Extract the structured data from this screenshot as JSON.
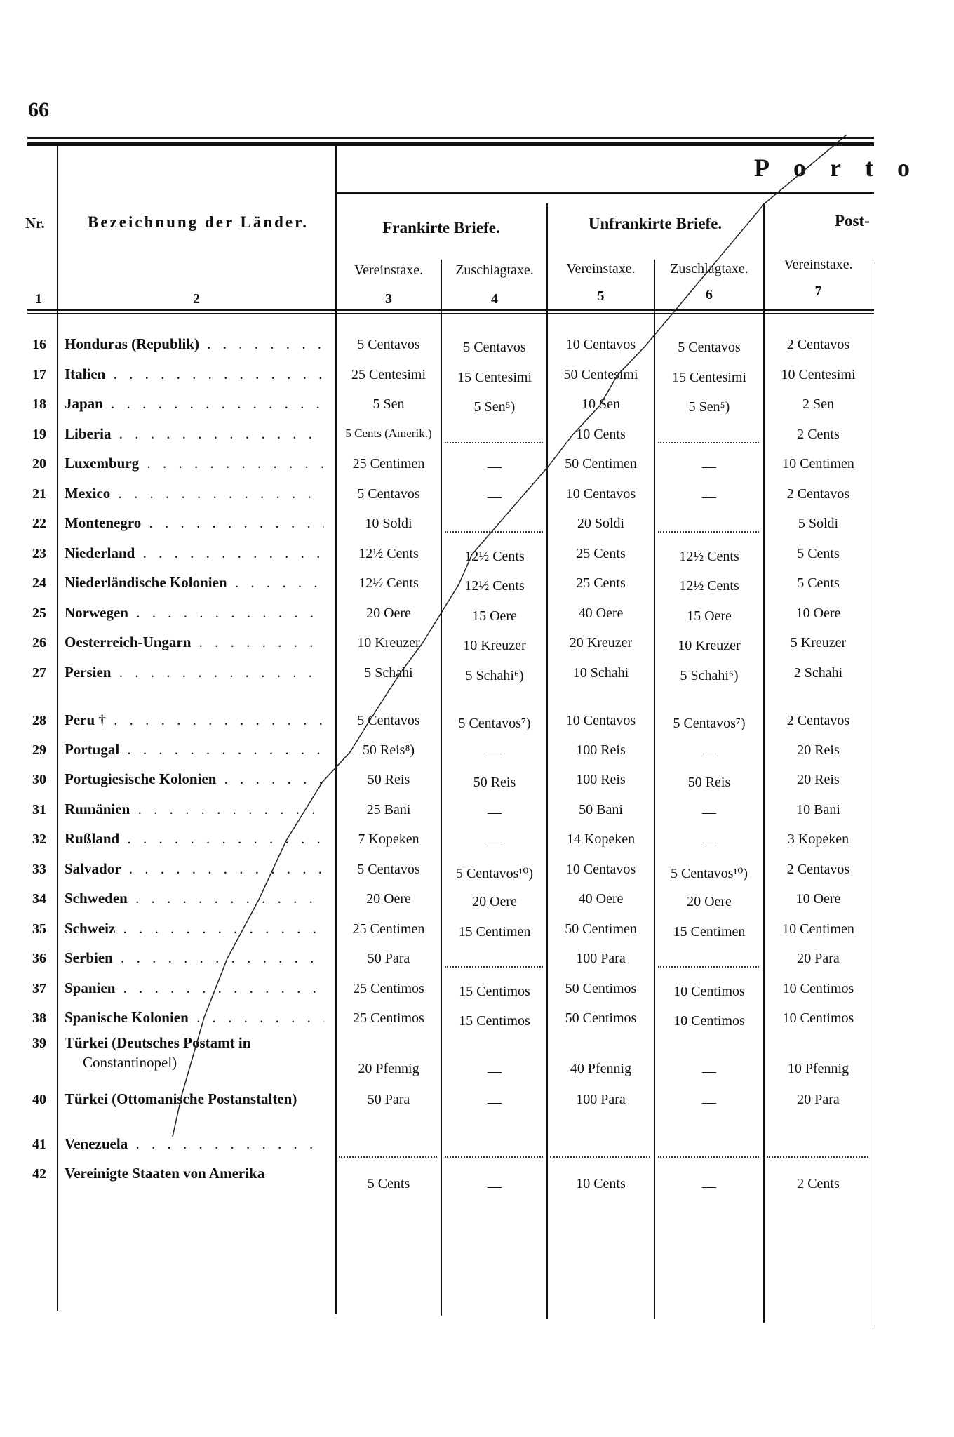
{
  "page_number": "66",
  "header": {
    "nr": "Nr.",
    "name": "Bezeichnung der Länder.",
    "group_title": "Porto",
    "frankirte": "Frankirte Briefe.",
    "unfrankirte": "Unfrankirte Briefe.",
    "post_cut": "Post-",
    "col3": "Vereinstaxe.",
    "col4": "Zuschlagtaxe.",
    "col5": "Vereinstaxe.",
    "col6": "Zuschlagtaxe.",
    "col7": "Vereinstaxe.",
    "colnums": [
      "1",
      "2",
      "3",
      "4",
      "5",
      "6",
      "7"
    ]
  },
  "rows": [
    {
      "nr": "16",
      "name": "Honduras (Republik)",
      "c3": "5 Centavos",
      "c4": "5 Centavos",
      "c5": "10 Centavos",
      "c6": "5 Centavos",
      "c7": "2 Centavos"
    },
    {
      "nr": "17",
      "name": "Italien",
      "c3": "25 Centesimi",
      "c4": "15 Centesimi",
      "c5": "50 Centesimi",
      "c6": "15 Centesimi",
      "c7": "10 Centesimi"
    },
    {
      "nr": "18",
      "name": "Japan",
      "c3": "5 Sen",
      "c4": "5 Sen⁵)",
      "c5": "10 Sen",
      "c6": "5 Sen⁵)",
      "c7": "2 Sen"
    },
    {
      "nr": "19",
      "name": "Liberia",
      "c3": "5 Cents (Amerik.)",
      "c4": "",
      "c5": "10 Cents",
      "c6": "",
      "c7": "2 Cents"
    },
    {
      "nr": "20",
      "name": "Luxemburg",
      "c3": "25 Centimen",
      "c4": "—",
      "c5": "50 Centimen",
      "c6": "—",
      "c7": "10 Centimen"
    },
    {
      "nr": "21",
      "name": "Mexico",
      "c3": "5 Centavos",
      "c4": "—",
      "c5": "10 Centavos",
      "c6": "—",
      "c7": "2 Centavos"
    },
    {
      "nr": "22",
      "name": "Montenegro",
      "c3": "10 Soldi",
      "c4": "",
      "c5": "20 Soldi",
      "c6": "",
      "c7": "5 Soldi"
    },
    {
      "nr": "23",
      "name": "Niederland",
      "c3": "12½ Cents",
      "c4": "12½ Cents",
      "c5": "25 Cents",
      "c6": "12½ Cents",
      "c7": "5 Cents"
    },
    {
      "nr": "24",
      "name": "Niederländische Kolonien",
      "c3": "12½ Cents",
      "c4": "12½ Cents",
      "c5": "25 Cents",
      "c6": "12½ Cents",
      "c7": "5 Cents"
    },
    {
      "nr": "25",
      "name": "Norwegen",
      "c3": "20 Oere",
      "c4": "15 Oere",
      "c5": "40 Oere",
      "c6": "15 Oere",
      "c7": "10 Oere"
    },
    {
      "nr": "26",
      "name": "Oesterreich-Ungarn",
      "c3": "10 Kreuzer",
      "c4": "10 Kreuzer",
      "c5": "20 Kreuzer",
      "c6": "10 Kreuzer",
      "c7": "5 Kreuzer"
    },
    {
      "nr": "27",
      "name": "Persien",
      "c3": "5 Schahi",
      "c4": "5 Schahi⁶)",
      "c5": "10 Schahi",
      "c6": "5 Schahi⁶)",
      "c7": "2 Schahi"
    },
    {
      "nr": "28",
      "name": "Peru †",
      "c3": "5 Centavos",
      "c4": "5 Centavos⁷)",
      "c5": "10 Centavos",
      "c6": "5 Centavos⁷)",
      "c7": "2 Centavos"
    },
    {
      "nr": "29",
      "name": "Portugal",
      "c3": "50 Reis⁸)",
      "c4": "—",
      "c5": "100 Reis",
      "c6": "—",
      "c7": "20 Reis"
    },
    {
      "nr": "30",
      "name": "Portugiesische Kolonien",
      "c3": "50 Reis",
      "c4": "50 Reis",
      "c5": "100 Reis",
      "c6": "50 Reis",
      "c7": "20 Reis"
    },
    {
      "nr": "31",
      "name": "Rumänien",
      "c3": "25 Bani",
      "c4": "—",
      "c5": "50 Bani",
      "c6": "—",
      "c7": "10 Bani"
    },
    {
      "nr": "32",
      "name": "Rußland",
      "c3": "7 Kopeken",
      "c4": "—",
      "c5": "14 Kopeken",
      "c6": "—",
      "c7": "3 Kopeken"
    },
    {
      "nr": "33",
      "name": "Salvador",
      "c3": "5 Centavos",
      "c4": "5 Centavos¹⁰)",
      "c5": "10 Centavos",
      "c6": "5 Centavos¹⁰)",
      "c7": "2 Centavos"
    },
    {
      "nr": "34",
      "name": "Schweden",
      "c3": "20 Oere",
      "c4": "20 Oere",
      "c5": "40 Oere",
      "c6": "20 Oere",
      "c7": "10 Oere"
    },
    {
      "nr": "35",
      "name": "Schweiz",
      "c3": "25 Centimen",
      "c4": "15 Centimen",
      "c5": "50 Centimen",
      "c6": "15 Centimen",
      "c7": "10 Centimen"
    },
    {
      "nr": "36",
      "name": "Serbien",
      "c3": "50 Para",
      "c4": "",
      "c5": "100 Para",
      "c6": "",
      "c7": "20 Para"
    },
    {
      "nr": "37",
      "name": "Spanien",
      "c3": "25 Centimos",
      "c4": "15 Centimos",
      "c5": "50 Centimos",
      "c6": "10 Centimos",
      "c7": "10 Centimos"
    },
    {
      "nr": "38",
      "name": "Spanische Kolonien",
      "c3": "25 Centimos",
      "c4": "15 Centimos",
      "c5": "50 Centimos",
      "c6": "10 Centimos",
      "c7": "10 Centimos"
    },
    {
      "nr": "39",
      "name": "Türkei (Deutsches Postamt in",
      "name2": "Constantinopel)",
      "c3": "20 Pfennig",
      "c4": "—",
      "c5": "40 Pfennig",
      "c6": "—",
      "c7": "10 Pfennig"
    },
    {
      "nr": "40",
      "name": "Türkei (Ottomanische Postanstalten)",
      "c3": "50 Para",
      "c4": "—",
      "c5": "100 Para",
      "c6": "—",
      "c7": "20 Para"
    },
    {
      "nr": "41",
      "name": "Venezuela",
      "c3": "",
      "c4": "",
      "c5": "",
      "c6": "",
      "c7": ""
    },
    {
      "nr": "42",
      "name": "Vereinigte Staaten von Amerika",
      "c3": "5 Cents",
      "c4": "—",
      "c5": "10 Cents",
      "c6": "—",
      "c7": "2 Cents"
    }
  ]
}
